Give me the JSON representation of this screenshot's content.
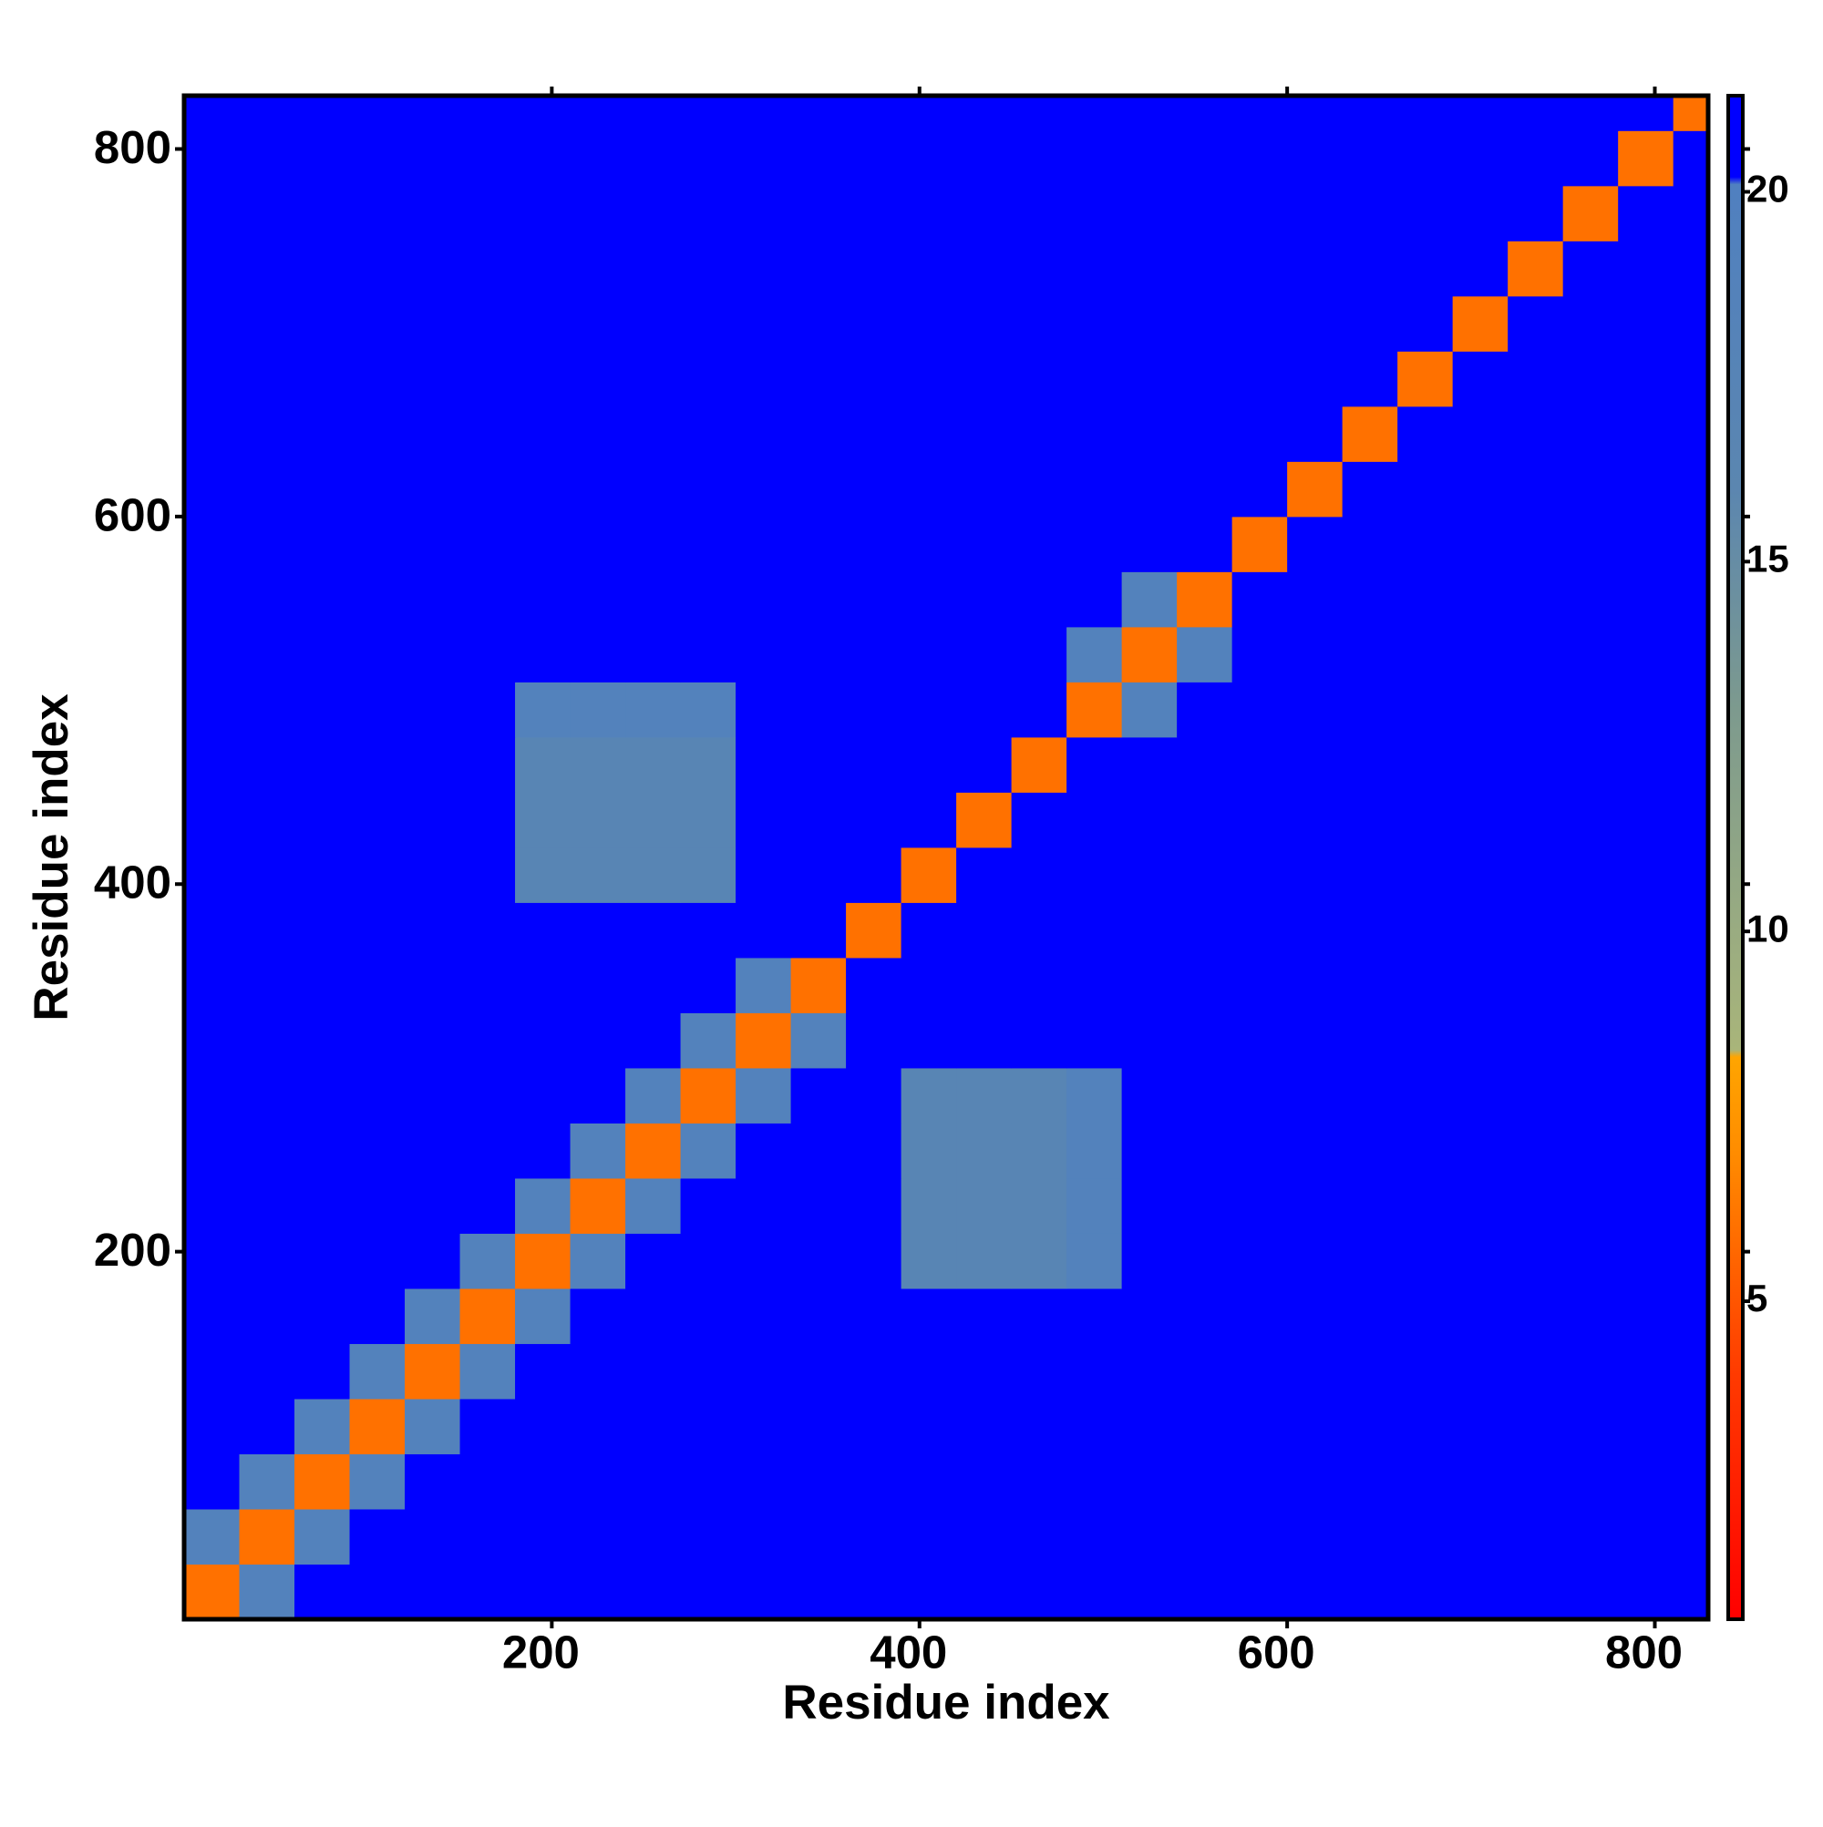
{
  "chart_data": {
    "type": "heatmap",
    "xlabel": "Residue index",
    "ylabel": "Residue index",
    "xbins": [
      0,
      30,
      60,
      90,
      120,
      150,
      180,
      210,
      240,
      270,
      300,
      330,
      360,
      390,
      420,
      450,
      480,
      510,
      540,
      570,
      600,
      630,
      660,
      690,
      720,
      750,
      780,
      810,
      829
    ],
    "ybins": [
      0,
      30,
      60,
      90,
      120,
      150,
      180,
      210,
      240,
      270,
      300,
      330,
      360,
      390,
      420,
      450,
      480,
      510,
      540,
      570,
      600,
      630,
      660,
      690,
      720,
      750,
      780,
      810,
      829
    ],
    "z": [
      [
        6,
        19,
        21,
        21,
        21,
        21,
        21,
        21,
        21,
        21,
        21,
        21,
        21,
        21,
        21,
        21,
        21,
        21,
        21,
        21,
        21,
        21,
        21,
        21,
        21,
        21,
        21,
        21
      ],
      [
        19,
        6,
        19,
        21,
        21,
        21,
        21,
        21,
        21,
        21,
        21,
        21,
        21,
        21,
        21,
        21,
        21,
        21,
        21,
        21,
        21,
        21,
        21,
        21,
        21,
        21,
        21,
        21
      ],
      [
        21,
        19,
        6,
        19,
        21,
        21,
        21,
        21,
        21,
        21,
        21,
        21,
        21,
        21,
        21,
        21,
        21,
        21,
        21,
        21,
        21,
        21,
        21,
        21,
        21,
        21,
        21,
        21
      ],
      [
        21,
        21,
        19,
        6,
        19,
        21,
        21,
        21,
        21,
        21,
        21,
        21,
        21,
        21,
        21,
        21,
        21,
        21,
        21,
        21,
        21,
        21,
        21,
        21,
        21,
        21,
        21,
        21
      ],
      [
        21,
        21,
        21,
        19,
        6,
        19,
        21,
        21,
        21,
        21,
        21,
        21,
        21,
        21,
        21,
        21,
        21,
        21,
        21,
        21,
        21,
        21,
        21,
        21,
        21,
        21,
        21,
        21
      ],
      [
        21,
        21,
        21,
        21,
        19,
        6,
        19,
        21,
        21,
        21,
        21,
        21,
        21,
        21,
        21,
        21,
        21,
        21,
        21,
        21,
        21,
        21,
        21,
        21,
        21,
        21,
        21,
        21
      ],
      [
        21,
        21,
        21,
        21,
        21,
        19,
        6,
        19,
        21,
        21,
        21,
        21,
        21,
        17,
        17,
        17,
        19,
        21,
        21,
        21,
        21,
        21,
        21,
        21,
        21,
        21,
        21,
        21
      ],
      [
        21,
        21,
        21,
        21,
        21,
        21,
        19,
        6,
        19,
        21,
        21,
        21,
        21,
        17,
        17,
        17,
        19,
        21,
        21,
        21,
        21,
        21,
        21,
        21,
        21,
        21,
        21,
        21
      ],
      [
        21,
        21,
        21,
        21,
        21,
        21,
        21,
        19,
        6,
        19,
        21,
        21,
        21,
        17,
        17,
        17,
        19,
        21,
        21,
        21,
        21,
        21,
        21,
        21,
        21,
        21,
        21,
        21
      ],
      [
        21,
        21,
        21,
        21,
        21,
        21,
        21,
        21,
        19,
        6,
        19,
        21,
        21,
        17,
        17,
        17,
        19,
        21,
        21,
        21,
        21,
        21,
        21,
        21,
        21,
        21,
        21,
        21
      ],
      [
        21,
        21,
        21,
        21,
        21,
        21,
        21,
        21,
        21,
        19,
        6,
        19,
        21,
        21,
        21,
        21,
        21,
        21,
        21,
        21,
        21,
        21,
        21,
        21,
        21,
        21,
        21,
        21
      ],
      [
        21,
        21,
        21,
        21,
        21,
        21,
        21,
        21,
        21,
        21,
        19,
        6,
        21,
        21,
        21,
        21,
        21,
        21,
        21,
        21,
        21,
        21,
        21,
        21,
        21,
        21,
        21,
        21
      ],
      [
        21,
        21,
        21,
        21,
        21,
        21,
        21,
        21,
        21,
        21,
        21,
        21,
        6,
        21,
        21,
        21,
        21,
        21,
        21,
        21,
        21,
        21,
        21,
        21,
        21,
        21,
        21,
        21
      ],
      [
        21,
        21,
        21,
        21,
        21,
        21,
        17,
        17,
        17,
        17,
        21,
        21,
        21,
        6,
        21,
        21,
        21,
        21,
        21,
        21,
        21,
        21,
        21,
        21,
        21,
        21,
        21,
        21
      ],
      [
        21,
        21,
        21,
        21,
        21,
        21,
        17,
        17,
        17,
        17,
        21,
        21,
        21,
        21,
        6,
        21,
        21,
        21,
        21,
        21,
        21,
        21,
        21,
        21,
        21,
        21,
        21,
        21
      ],
      [
        21,
        21,
        21,
        21,
        21,
        21,
        17,
        17,
        17,
        17,
        21,
        21,
        21,
        21,
        21,
        6,
        21,
        21,
        21,
        21,
        21,
        21,
        21,
        21,
        21,
        21,
        21,
        21
      ],
      [
        21,
        21,
        21,
        21,
        21,
        21,
        19,
        19,
        19,
        19,
        21,
        21,
        21,
        21,
        21,
        21,
        6,
        19,
        21,
        21,
        21,
        21,
        21,
        21,
        21,
        21,
        21,
        21
      ],
      [
        21,
        21,
        21,
        21,
        21,
        21,
        21,
        21,
        21,
        21,
        21,
        21,
        21,
        21,
        21,
        21,
        19,
        6,
        19,
        21,
        21,
        21,
        21,
        21,
        21,
        21,
        21,
        21
      ],
      [
        21,
        21,
        21,
        21,
        21,
        21,
        21,
        21,
        21,
        21,
        21,
        21,
        21,
        21,
        21,
        21,
        21,
        19,
        6,
        21,
        21,
        21,
        21,
        21,
        21,
        21,
        21,
        21
      ],
      [
        21,
        21,
        21,
        21,
        21,
        21,
        21,
        21,
        21,
        21,
        21,
        21,
        21,
        21,
        21,
        21,
        21,
        21,
        21,
        6,
        21,
        21,
        21,
        21,
        21,
        21,
        21,
        21
      ],
      [
        21,
        21,
        21,
        21,
        21,
        21,
        21,
        21,
        21,
        21,
        21,
        21,
        21,
        21,
        21,
        21,
        21,
        21,
        21,
        21,
        6,
        21,
        21,
        21,
        21,
        21,
        21,
        21
      ],
      [
        21,
        21,
        21,
        21,
        21,
        21,
        21,
        21,
        21,
        21,
        21,
        21,
        21,
        21,
        21,
        21,
        21,
        21,
        21,
        21,
        21,
        6,
        21,
        21,
        21,
        21,
        21,
        21
      ],
      [
        21,
        21,
        21,
        21,
        21,
        21,
        21,
        21,
        21,
        21,
        21,
        21,
        21,
        21,
        21,
        21,
        21,
        21,
        21,
        21,
        21,
        21,
        6,
        21,
        21,
        21,
        21,
        21
      ],
      [
        21,
        21,
        21,
        21,
        21,
        21,
        21,
        21,
        21,
        21,
        21,
        21,
        21,
        21,
        21,
        21,
        21,
        21,
        21,
        21,
        21,
        21,
        21,
        6,
        21,
        21,
        21,
        21
      ],
      [
        21,
        21,
        21,
        21,
        21,
        21,
        21,
        21,
        21,
        21,
        21,
        21,
        21,
        21,
        21,
        21,
        21,
        21,
        21,
        21,
        21,
        21,
        21,
        21,
        6,
        21,
        21,
        21
      ],
      [
        21,
        21,
        21,
        21,
        21,
        21,
        21,
        21,
        21,
        21,
        21,
        21,
        21,
        21,
        21,
        21,
        21,
        21,
        21,
        21,
        21,
        21,
        21,
        21,
        21,
        6,
        21,
        21
      ],
      [
        21,
        21,
        21,
        21,
        21,
        21,
        21,
        21,
        21,
        21,
        21,
        21,
        21,
        21,
        21,
        21,
        21,
        21,
        21,
        21,
        21,
        21,
        21,
        21,
        21,
        21,
        6,
        21
      ],
      [
        21,
        21,
        21,
        21,
        21,
        21,
        21,
        21,
        21,
        21,
        21,
        21,
        21,
        21,
        21,
        21,
        21,
        21,
        21,
        21,
        21,
        21,
        21,
        21,
        21,
        21,
        21,
        6
      ]
    ],
    "xlim": [
      0,
      829
    ],
    "ylim": [
      0,
      829
    ],
    "xticks": [
      200,
      400,
      600,
      800
    ],
    "yticks": [
      200,
      400,
      600,
      800
    ],
    "clim": [
      0.7,
      21.3
    ],
    "cticks": [
      5,
      10,
      15,
      20
    ],
    "colorscale": [
      [
        0.7,
        "#ff0000"
      ],
      [
        4,
        "#ff3a00"
      ],
      [
        7,
        "#ff8c00"
      ],
      [
        8.3,
        "#ffa500"
      ],
      [
        8.4,
        "#a9b57a"
      ],
      [
        13,
        "#7d9a8e"
      ],
      [
        16,
        "#5b86b0"
      ],
      [
        20.1,
        "#5080c0"
      ],
      [
        20.2,
        "#0000ff"
      ],
      [
        21.3,
        "#0000ff"
      ]
    ]
  }
}
